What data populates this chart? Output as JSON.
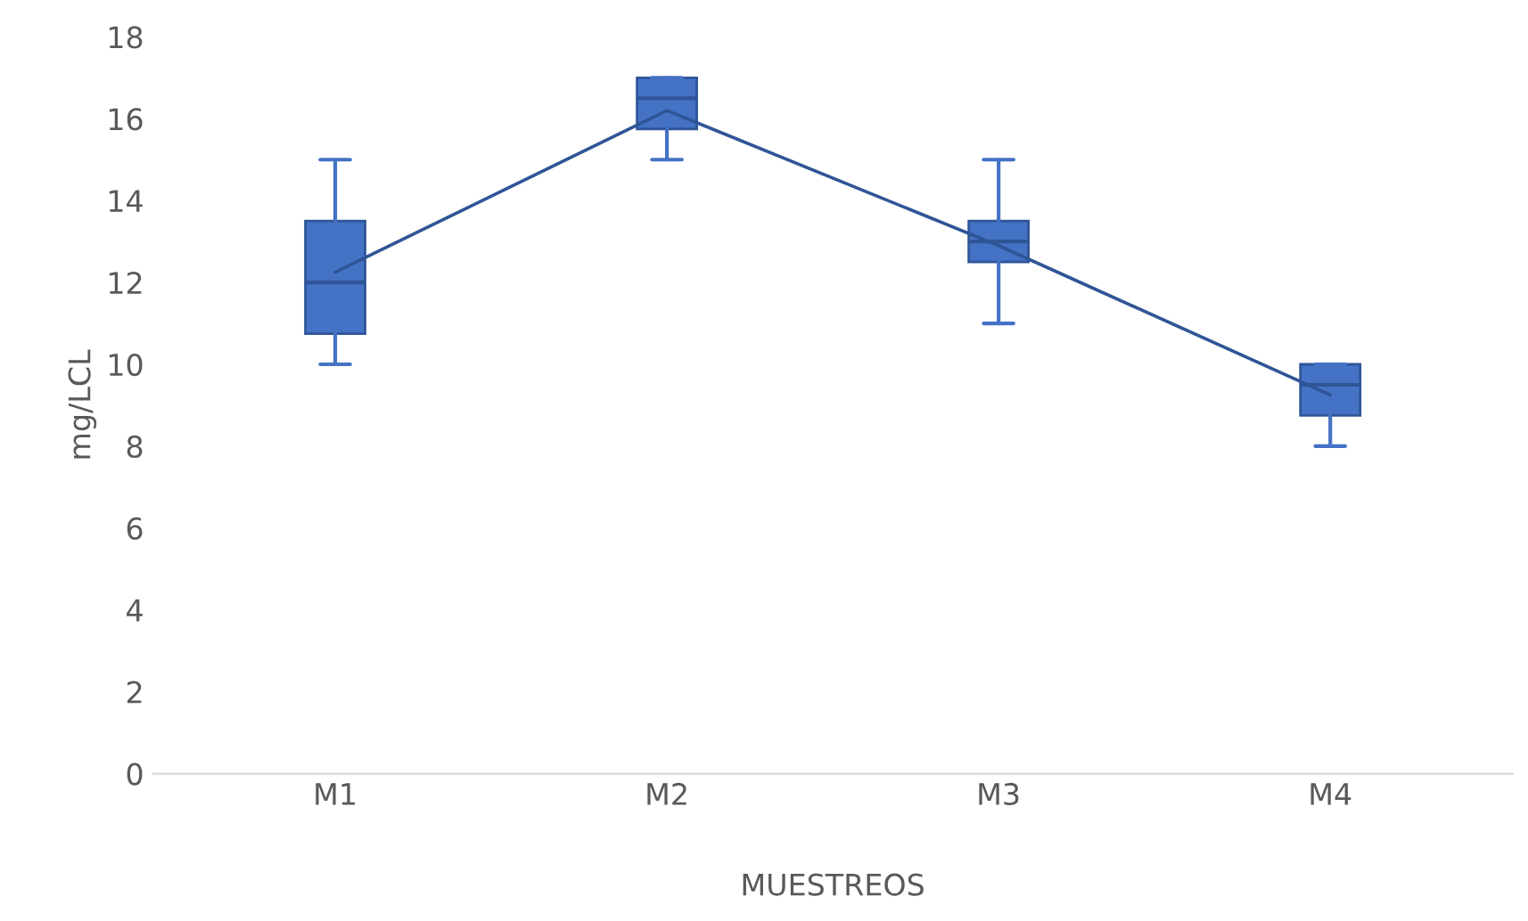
{
  "chart_data": {
    "type": "box",
    "xlabel": "MUESTREOS",
    "ylabel": "mg/LCL",
    "categories": [
      "M1",
      "M2",
      "M3",
      "M4"
    ],
    "boxes": [
      {
        "low": 10,
        "q1": 10.75,
        "median": 12,
        "q3": 13.5,
        "high": 15
      },
      {
        "low": 15,
        "q1": 15.75,
        "median": 16.5,
        "q3": 17,
        "high": 17
      },
      {
        "low": 11,
        "q1": 12.5,
        "median": 13,
        "q3": 13.5,
        "high": 15
      },
      {
        "low": 8,
        "q1": 8.75,
        "median": 9.5,
        "q3": 10,
        "high": 10
      }
    ],
    "color": "#4472c4",
    "series": [
      {
        "type": "line",
        "color": "#2f5597",
        "values": [
          12.25,
          16.2,
          12.9,
          9.25
        ]
      }
    ],
    "ylim": [
      0,
      18
    ],
    "yticks": [
      0,
      2,
      4,
      6,
      8,
      10,
      12,
      14,
      16,
      18
    ],
    "grid": false,
    "legend": false
  }
}
